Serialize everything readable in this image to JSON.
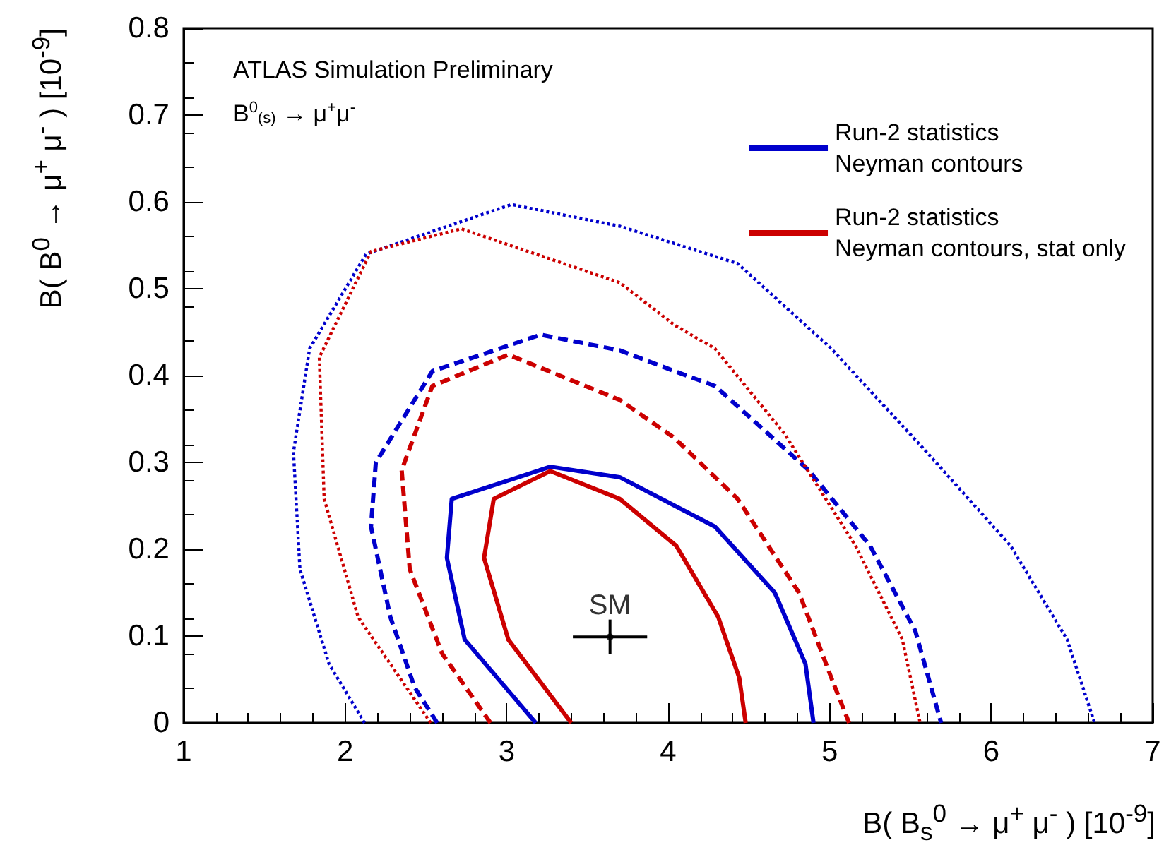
{
  "chart_data": {
    "type": "line",
    "xlabel": "B( B$_{s}$$^{0}$ → μ$^{+}$ μ$^{-}$ ) [10$^{-9}$]",
    "ylabel": "B( B$^{0}$ → μ$^{+}$ μ$^{-}$ ) [10$^{-9}$]",
    "xlim": [
      1,
      7
    ],
    "xticks": [
      1,
      2,
      3,
      4,
      5,
      6,
      7
    ],
    "ylim": [
      0,
      0.8
    ],
    "yticks": [
      0,
      0.1,
      0.2,
      0.3,
      0.4,
      0.5,
      0.6,
      0.7,
      0.8
    ],
    "grid": false,
    "legend": "top right",
    "annotations": [
      "ATLAS Simulation Preliminary",
      "B$^{0}$$_{(s)}$ → μ$^{+}$μ$^{-}$",
      {
        "text": "SM",
        "x": 3.64,
        "y": 0.099
      }
    ],
    "series": [
      {
        "name": "Run-2 statistics\nNeyman contours",
        "color": "#0000cc",
        "line_style": "solid",
        "x": [
          3.18,
          2.74,
          2.63,
          2.66,
          3.27,
          3.7,
          4.29,
          4.66,
          4.85,
          4.9
        ],
        "values": [
          0,
          0.096,
          0.19,
          0.258,
          0.295,
          0.283,
          0.226,
          0.15,
          0.068,
          0
        ]
      },
      {
        "name": "Run-2 statistics\nNeyman contours, stat only",
        "color": "#cc0000",
        "line_style": "solid",
        "x": [
          3.4,
          3.01,
          2.86,
          2.92,
          3.27,
          3.7,
          4.05,
          4.31,
          4.44,
          4.48
        ],
        "values": [
          0,
          0.096,
          0.19,
          0.258,
          0.29,
          0.258,
          0.204,
          0.122,
          0.052,
          0
        ]
      },
      {
        "color": "#0000cc",
        "line_style": "dashed",
        "x": [
          2.57,
          2.43,
          2.28,
          2.16,
          2.19,
          2.54,
          3.21,
          3.7,
          4.04,
          4.29,
          4.87,
          5.25,
          5.53,
          5.69
        ],
        "values": [
          0,
          0.041,
          0.122,
          0.226,
          0.3,
          0.405,
          0.447,
          0.429,
          0.405,
          0.388,
          0.291,
          0.204,
          0.106,
          0
        ]
      },
      {
        "color": "#cc0000",
        "line_style": "dashed",
        "x": [
          2.9,
          2.6,
          2.4,
          2.35,
          2.54,
          3.01,
          3.7,
          4.04,
          4.43,
          4.81,
          5.01,
          5.12
        ],
        "values": [
          0,
          0.08,
          0.177,
          0.291,
          0.388,
          0.424,
          0.372,
          0.328,
          0.258,
          0.15,
          0.052,
          0
        ]
      },
      {
        "color": "#0000cc",
        "line_style": "dotted",
        "x": [
          2.12,
          1.9,
          1.72,
          1.68,
          1.78,
          2.13,
          3.03,
          3.7,
          4.43,
          5.01,
          5.6,
          6.12,
          6.47,
          6.64
        ],
        "values": [
          0,
          0.068,
          0.177,
          0.312,
          0.431,
          0.54,
          0.597,
          0.572,
          0.529,
          0.431,
          0.312,
          0.204,
          0.096,
          0
        ]
      },
      {
        "color": "#cc0000",
        "line_style": "dotted",
        "x": [
          2.53,
          2.08,
          1.87,
          1.84,
          2.16,
          2.72,
          3.7,
          4.04,
          4.29,
          4.72,
          5.16,
          5.45,
          5.56
        ],
        "values": [
          0,
          0.122,
          0.258,
          0.421,
          0.543,
          0.569,
          0.507,
          0.458,
          0.431,
          0.333,
          0.204,
          0.096,
          0
        ]
      },
      {
        "type": "scatter",
        "color": "#000000",
        "x": [
          3.64
        ],
        "values": [
          0.099
        ],
        "errors": [
          0.02
        ],
        "xerrors": [
          0.23
        ]
      }
    ]
  }
}
